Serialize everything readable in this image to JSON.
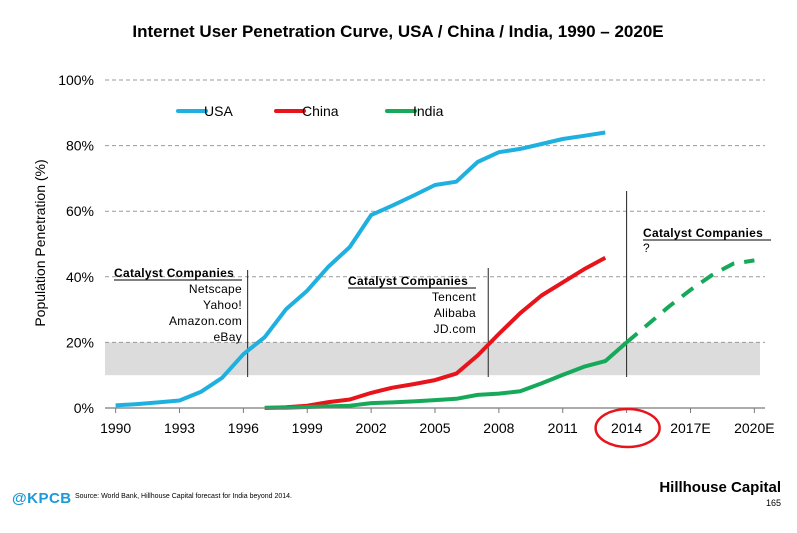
{
  "page": {
    "brand": "Hillhouse Capital",
    "page_number": "165",
    "logo_text": "@KPCB",
    "source_note": "Source: World Bank, Hillhouse Capital forecast for India beyond 2014."
  },
  "colors": {
    "usa": "#1fb0e0",
    "china": "#e8141b",
    "india": "#17a95a",
    "band": "#dcdcdc",
    "grid": "#9a9a9a",
    "highlight_circle": "#e8141b"
  },
  "chart_data": {
    "type": "line",
    "title": "Internet User Penetration Curve, USA / China / India, 1990 – 2020E",
    "xlabel": "",
    "ylabel": "Population Penetration (%)",
    "xlim": [
      1989.5,
      2020.5
    ],
    "ylim": [
      0,
      100
    ],
    "x_ticks": [
      {
        "value": 1990,
        "label": "1990"
      },
      {
        "value": 1993,
        "label": "1993"
      },
      {
        "value": 1996,
        "label": "1996"
      },
      {
        "value": 1999,
        "label": "1999"
      },
      {
        "value": 2002,
        "label": "2002"
      },
      {
        "value": 2005,
        "label": "2005"
      },
      {
        "value": 2008,
        "label": "2008"
      },
      {
        "value": 2011,
        "label": "2011"
      },
      {
        "value": 2014,
        "label": "2014"
      },
      {
        "value": 2017,
        "label": "2017E"
      },
      {
        "value": 2020,
        "label": "2020E"
      }
    ],
    "y_ticks": [
      {
        "value": 0,
        "label": "0%"
      },
      {
        "value": 20,
        "label": "20%"
      },
      {
        "value": 40,
        "label": "40%"
      },
      {
        "value": 60,
        "label": "60%"
      },
      {
        "value": 80,
        "label": "80%"
      },
      {
        "value": 100,
        "label": "100%"
      }
    ],
    "highlight_band": [
      10,
      20
    ],
    "highlight_tick": "2014",
    "series": [
      {
        "name": "USA",
        "color": "#1fb0e0",
        "x": [
          1990,
          1991,
          1992,
          1993,
          1994,
          1995,
          1996,
          1997,
          1998,
          1999,
          2000,
          2001,
          2002,
          2003,
          2004,
          2005,
          2006,
          2007,
          2008,
          2009,
          2010,
          2011,
          2012,
          2013
        ],
        "y": [
          0.8,
          1.2,
          1.7,
          2.3,
          4.9,
          9.2,
          16.4,
          21.6,
          30.1,
          35.8,
          43.1,
          49.1,
          58.8,
          61.7,
          64.8,
          68.0,
          69.0,
          75.0,
          78.0,
          79.0,
          80.5,
          82.0,
          83.0,
          84.0
        ]
      },
      {
        "name": "China",
        "color": "#e8141b",
        "x": [
          1997,
          1998,
          1999,
          2000,
          2001,
          2002,
          2003,
          2004,
          2005,
          2006,
          2007,
          2008,
          2009,
          2010,
          2011,
          2012,
          2013
        ],
        "y": [
          0.0,
          0.2,
          0.7,
          1.8,
          2.6,
          4.6,
          6.2,
          7.3,
          8.5,
          10.5,
          16.0,
          22.6,
          28.9,
          34.3,
          38.3,
          42.3,
          45.8
        ]
      },
      {
        "name": "India",
        "color": "#17a95a",
        "x": [
          1997,
          1998,
          1999,
          2000,
          2001,
          2002,
          2003,
          2004,
          2005,
          2006,
          2007,
          2008,
          2009,
          2010,
          2011,
          2012,
          2013,
          2014
        ],
        "y": [
          0.1,
          0.1,
          0.3,
          0.5,
          0.7,
          1.5,
          1.7,
          2.0,
          2.4,
          2.8,
          4.0,
          4.4,
          5.1,
          7.5,
          10.1,
          12.6,
          14.3,
          20.0
        ]
      },
      {
        "name": "India forecast",
        "color": "#17a95a",
        "dashed": true,
        "x": [
          2014,
          2015,
          2016,
          2017,
          2018,
          2019,
          2020
        ],
        "y": [
          20.0,
          25.5,
          31.0,
          36.0,
          40.5,
          44.0,
          45.0
        ]
      }
    ],
    "legend": [
      {
        "label": "USA",
        "color": "#1fb0e0"
      },
      {
        "label": "China",
        "color": "#e8141b"
      },
      {
        "label": "India",
        "color": "#17a95a"
      }
    ],
    "annotations": [
      {
        "year": 1996.2,
        "title": "Catalyst Companies",
        "items": [
          "Netscape",
          "Yahoo!",
          "Amazon.com",
          "eBay"
        ]
      },
      {
        "year": 2007.5,
        "title": "Catalyst Companies",
        "items": [
          "Tencent",
          "Alibaba",
          "JD.com"
        ]
      },
      {
        "year": 2014.0,
        "title": "Catalyst Companies",
        "items": [
          "?"
        ]
      }
    ]
  }
}
